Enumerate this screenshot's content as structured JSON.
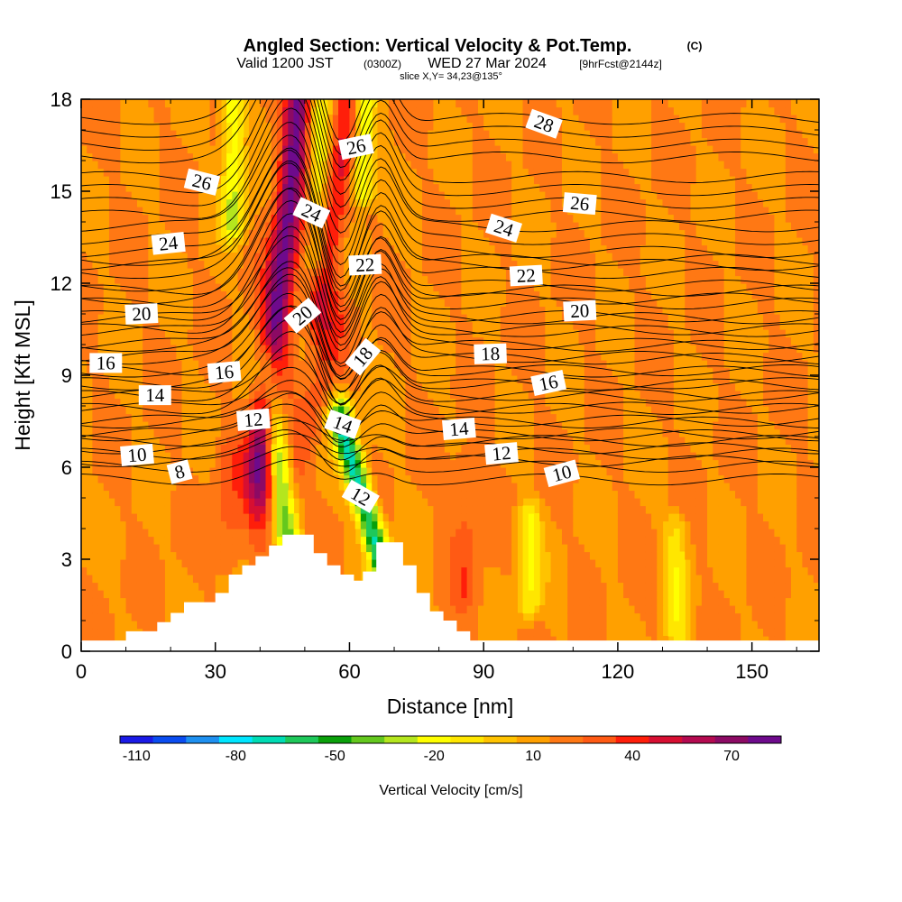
{
  "chart_data": {
    "type": "heatmap",
    "title": "Angled Section: Vertical Velocity & Pot.Temp.",
    "title_unit": "(C)",
    "subtitle_parts": {
      "a": "Valid 1200 JST",
      "b": "(0300Z)",
      "c": "WED 27 Mar 2024",
      "d": "[9hrFcst@2144z]"
    },
    "slice_note": "slice X,Y= 34,23@135°",
    "xlabel": "Distance [nm]",
    "ylabel": "Height [Kft MSL]",
    "xlim": [
      0,
      165
    ],
    "ylim": [
      0,
      18
    ],
    "x_ticks": [
      "0",
      "30",
      "60",
      "90",
      "120",
      "150"
    ],
    "y_ticks": [
      "0",
      "3",
      "6",
      "9",
      "12",
      "15",
      "18"
    ],
    "colorbar": {
      "label": "Vertical Velocity [cm/s]",
      "tick_labels": [
        "-110",
        "-80",
        "-50",
        "-20",
        "10",
        "40",
        "70"
      ],
      "colors": [
        "#1a1ae6",
        "#0a4cf0",
        "#1e90f0",
        "#00e6ff",
        "#00dcb4",
        "#1ec85a",
        "#0aa00a",
        "#64c81e",
        "#b4e61e",
        "#ffff00",
        "#ffe600",
        "#ffc300",
        "#ffa000",
        "#ff7814",
        "#ff5a14",
        "#ff1e0a",
        "#d70f32",
        "#b40a50",
        "#8c0a64",
        "#6e0a8c"
      ]
    },
    "terrain_nm_kft": [
      [
        0,
        0.35
      ],
      [
        10,
        0.35
      ],
      [
        10,
        0.65
      ],
      [
        17,
        0.65
      ],
      [
        17,
        0.95
      ],
      [
        20,
        0.95
      ],
      [
        20,
        1.25
      ],
      [
        23,
        1.25
      ],
      [
        23,
        1.6
      ],
      [
        30,
        1.6
      ],
      [
        30,
        1.9
      ],
      [
        33,
        1.9
      ],
      [
        33,
        2.5
      ],
      [
        36,
        2.5
      ],
      [
        36,
        2.8
      ],
      [
        39,
        2.8
      ],
      [
        39,
        3.1
      ],
      [
        42,
        3.1
      ],
      [
        42,
        3.45
      ],
      [
        45,
        3.45
      ],
      [
        45,
        3.8
      ],
      [
        52,
        3.8
      ],
      [
        52,
        3.2
      ],
      [
        55,
        3.2
      ],
      [
        55,
        2.8
      ],
      [
        58,
        2.8
      ],
      [
        58,
        2.5
      ],
      [
        61,
        2.5
      ],
      [
        61,
        2.3
      ],
      [
        63,
        2.3
      ],
      [
        63,
        2.6
      ],
      [
        66,
        2.6
      ],
      [
        66,
        3.55
      ],
      [
        72,
        3.55
      ],
      [
        72,
        2.8
      ],
      [
        75,
        2.8
      ],
      [
        75,
        1.9
      ],
      [
        78,
        1.9
      ],
      [
        78,
        1.3
      ],
      [
        81,
        1.3
      ],
      [
        81,
        1.0
      ],
      [
        84,
        1.0
      ],
      [
        84,
        0.65
      ],
      [
        87,
        0.65
      ],
      [
        87,
        0.35
      ],
      [
        165,
        0.35
      ]
    ],
    "theta_levels": [
      {
        "value": 8,
        "peak": 0.5,
        "base": 5.6
      },
      {
        "value": 10,
        "peak": 1.0,
        "base": 6.2
      },
      {
        "value": 12,
        "peak": 1.5,
        "base": 7.1
      },
      {
        "value": 14,
        "peak": 2.0,
        "base": 7.9
      },
      {
        "value": 16,
        "peak": 2.5,
        "base": 8.7
      },
      {
        "value": 18,
        "peak": 2.9,
        "base": 9.6
      },
      {
        "value": 20,
        "peak": 3.3,
        "base": 10.5
      },
      {
        "value": 22,
        "peak": 3.5,
        "base": 11.5
      },
      {
        "value": 24,
        "peak": 3.6,
        "base": 12.6
      },
      {
        "value": 26,
        "peak": 3.5,
        "base": 14.2
      },
      {
        "value": 28,
        "peak": 3.2,
        "base": 16.1
      }
    ],
    "theta_labels": [
      {
        "text": "26",
        "x": 27,
        "y": 15.3,
        "rot": 14
      },
      {
        "text": "24",
        "x": 19.5,
        "y": 13.3,
        "rot": -6
      },
      {
        "text": "20",
        "x": 13.5,
        "y": 11.0,
        "rot": -3
      },
      {
        "text": "16",
        "x": 5.5,
        "y": 9.4,
        "rot": 0
      },
      {
        "text": "14",
        "x": 16.5,
        "y": 8.35,
        "rot": 0
      },
      {
        "text": "10",
        "x": 12.5,
        "y": 6.4,
        "rot": -5
      },
      {
        "text": "8",
        "x": 22,
        "y": 5.85,
        "rot": -15
      },
      {
        "text": "16",
        "x": 32,
        "y": 9.1,
        "rot": -5
      },
      {
        "text": "12",
        "x": 38.5,
        "y": 7.55,
        "rot": -5
      },
      {
        "text": "24",
        "x": 51.5,
        "y": 14.3,
        "rot": 25
      },
      {
        "text": "20",
        "x": 49.5,
        "y": 10.95,
        "rot": -40
      },
      {
        "text": "26",
        "x": 61.5,
        "y": 16.45,
        "rot": -12
      },
      {
        "text": "22",
        "x": 63.5,
        "y": 12.6,
        "rot": -3
      },
      {
        "text": "18",
        "x": 63,
        "y": 9.6,
        "rot": -50
      },
      {
        "text": "14",
        "x": 58.5,
        "y": 7.4,
        "rot": 20
      },
      {
        "text": "12",
        "x": 62.5,
        "y": 5.05,
        "rot": 30
      },
      {
        "text": "28",
        "x": 103.5,
        "y": 17.2,
        "rot": 20
      },
      {
        "text": "26",
        "x": 111.5,
        "y": 14.6,
        "rot": 5
      },
      {
        "text": "24",
        "x": 94.5,
        "y": 13.8,
        "rot": 18
      },
      {
        "text": "22",
        "x": 99.5,
        "y": 12.25,
        "rot": -3
      },
      {
        "text": "20",
        "x": 111.5,
        "y": 11.1,
        "rot": -3
      },
      {
        "text": "18",
        "x": 91.5,
        "y": 9.7,
        "rot": -2
      },
      {
        "text": "16",
        "x": 104.5,
        "y": 8.75,
        "rot": -12
      },
      {
        "text": "14",
        "x": 84.5,
        "y": 7.25,
        "rot": -5
      },
      {
        "text": "12",
        "x": 94,
        "y": 6.45,
        "rot": -5
      },
      {
        "text": "10",
        "x": 107.5,
        "y": 5.8,
        "rot": -15
      }
    ],
    "velocity_field_cm_s": {
      "background": 10,
      "features": [
        {
          "kind": "updraft",
          "x_top": 49,
          "x_bottom": 40,
          "y_range": [
            6,
            18
          ],
          "max": 78
        },
        {
          "kind": "updraft",
          "x_top": 60,
          "x_bottom": 53,
          "y_range": [
            11,
            18
          ],
          "max": 45
        },
        {
          "kind": "updraft",
          "x_top": 58,
          "x_bottom": 46,
          "y_range": [
            5,
            11
          ],
          "max": 25
        },
        {
          "kind": "downdraft",
          "x_top": 42,
          "x_bottom": 47,
          "y_range": [
            2.5,
            9
          ],
          "min": -50
        },
        {
          "kind": "downdraft",
          "x_top": 58,
          "x_bottom": 68,
          "y_range": [
            2.5,
            7.5
          ],
          "min": -80
        },
        {
          "kind": "downdraft",
          "x_top": 34,
          "x_bottom": 34,
          "y_range": [
            14,
            18
          ],
          "min": -35
        },
        {
          "kind": "downdraft",
          "x_top": 53,
          "x_bottom": 53,
          "y_range": [
            13,
            18
          ],
          "min": -25
        },
        {
          "kind": "downdraft",
          "x_top": 63,
          "x_bottom": 63,
          "y_range": [
            15,
            18
          ],
          "min": -40
        },
        {
          "kind": "downdraft",
          "x_top": 100,
          "x_bottom": 100,
          "y_range": [
            1.5,
            4.5
          ],
          "min": -22
        },
        {
          "kind": "downdraft",
          "x_top": 133,
          "x_bottom": 133,
          "y_range": [
            0.5,
            4
          ],
          "min": -15
        },
        {
          "kind": "updraft",
          "x_top": 33,
          "x_bottom": 33,
          "y_range": [
            3,
            6.5
          ],
          "max": 25
        },
        {
          "kind": "updraft",
          "x_top": 86,
          "x_bottom": 86,
          "y_range": [
            2,
            6
          ],
          "max": 25
        }
      ]
    }
  }
}
